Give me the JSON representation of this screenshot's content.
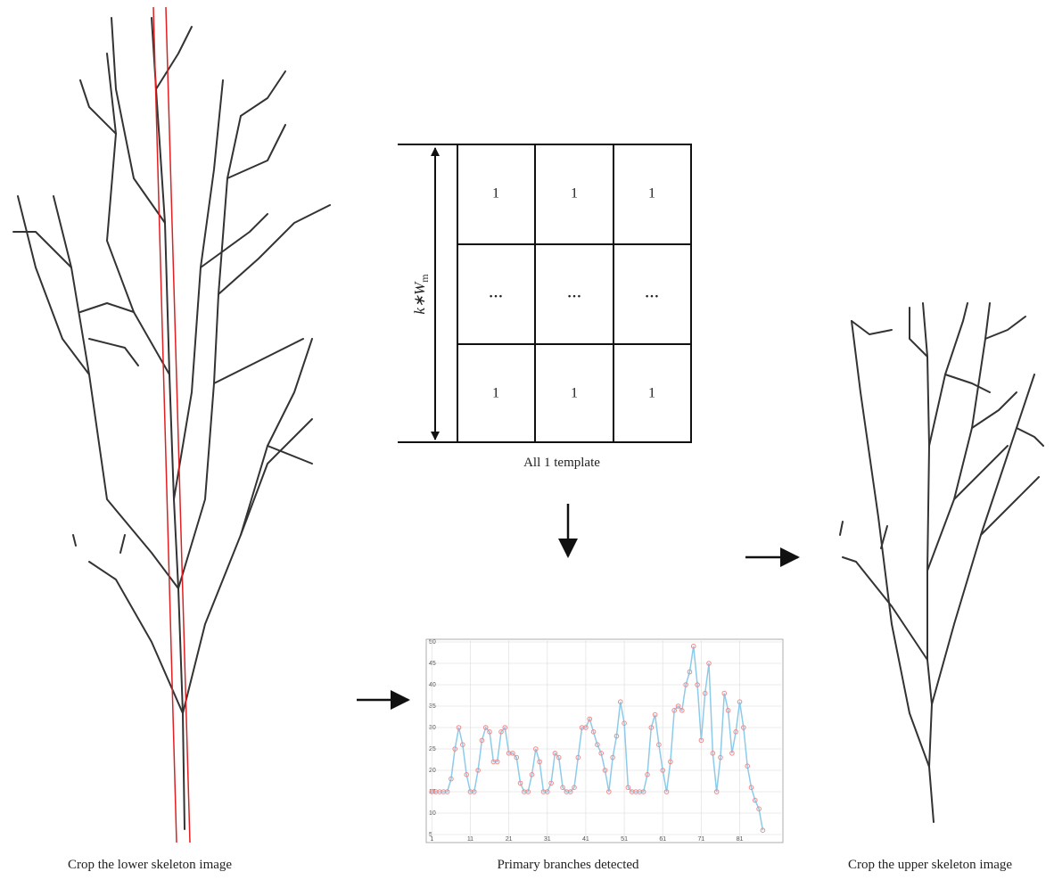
{
  "template": {
    "cells": [
      [
        "1",
        "1",
        "1"
      ],
      [
        "…",
        "…",
        "…"
      ],
      [
        "1",
        "1",
        "1"
      ]
    ],
    "height_label": {
      "main": "k∗W",
      "sub": "m"
    },
    "caption": "All 1 template"
  },
  "captions": {
    "lower": "Crop the lower skeleton image",
    "chart": "Primary branches detected",
    "upper": "Crop the upper skeleton image"
  },
  "chart_data": {
    "type": "line",
    "x": [
      1,
      2,
      3,
      4,
      5,
      6,
      7,
      8,
      9,
      10,
      11,
      12,
      13,
      14,
      15,
      16,
      17,
      18,
      19,
      20,
      21,
      22,
      23,
      24,
      25,
      26,
      27,
      28,
      29,
      30,
      31,
      32,
      33,
      34,
      35,
      36,
      37,
      38,
      39,
      40,
      41,
      42,
      43,
      44,
      45,
      46,
      47,
      48,
      49,
      50,
      51,
      52,
      53,
      54,
      55,
      56,
      57,
      58,
      59,
      60,
      61,
      62,
      63,
      64,
      65,
      66,
      67,
      68,
      69,
      70,
      71,
      72,
      73,
      74,
      75,
      76,
      77,
      78,
      79,
      80,
      81,
      82,
      83,
      84,
      85,
      86,
      87
    ],
    "series": [
      {
        "color": "#8ccbea",
        "marker_color": "#f08a8a",
        "values": [
          15,
          15,
          15,
          15,
          15,
          18,
          25,
          30,
          26,
          19,
          15,
          15,
          20,
          27,
          30,
          29,
          22,
          22,
          29,
          30,
          24,
          24,
          23,
          17,
          15,
          15,
          19,
          25,
          22,
          15,
          15,
          17,
          24,
          23,
          16,
          15,
          15,
          16,
          23,
          30,
          30,
          32,
          29,
          26,
          24,
          20,
          15,
          23,
          28,
          36,
          31,
          16,
          15,
          15,
          15,
          15,
          19,
          30,
          33,
          26,
          20,
          15,
          22,
          34,
          35,
          34,
          40,
          43,
          49,
          40,
          27,
          38,
          45,
          24,
          15,
          23,
          38,
          34,
          24,
          29,
          36,
          30,
          21,
          16,
          13,
          11,
          6
        ]
      }
    ],
    "xlim": [
      0,
      92
    ],
    "ylim": [
      5,
      50
    ],
    "xticks": [
      1,
      11,
      21,
      31,
      41,
      51,
      61,
      71,
      81
    ],
    "yticks": [
      5,
      10,
      15,
      20,
      25,
      30,
      35,
      40,
      45,
      50
    ],
    "grid": true
  }
}
